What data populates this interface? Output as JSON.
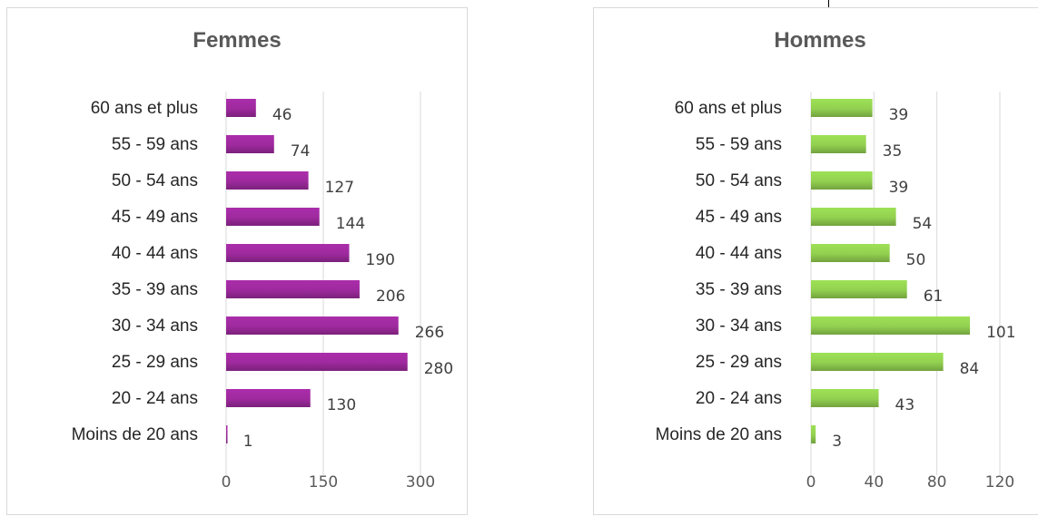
{
  "chart_data": [
    {
      "type": "bar",
      "orientation": "horizontal",
      "title": "Femmes",
      "categories": [
        "60 ans et plus",
        "55 - 59 ans",
        "50 - 54 ans",
        "45 - 49 ans",
        "40 - 44 ans",
        "35 - 39 ans",
        "30 - 34 ans",
        "25 - 29 ans",
        "20 - 24 ans",
        "Moins de 20 ans"
      ],
      "values": [
        46,
        74,
        127,
        144,
        190,
        206,
        266,
        280,
        130,
        1
      ],
      "xticks": [
        "0",
        "150",
        "300"
      ],
      "xlim": [
        0,
        300
      ],
      "color": "#9e2a9e",
      "grid": true,
      "data_labels": true
    },
    {
      "type": "bar",
      "orientation": "horizontal",
      "title": "Hommes",
      "categories": [
        "60 ans et plus",
        "55 - 59 ans",
        "50 - 54 ans",
        "45 - 49 ans",
        "40 - 44 ans",
        "35 - 39 ans",
        "30 - 34 ans",
        "25 - 29 ans",
        "20 - 24 ans",
        "Moins de 20 ans"
      ],
      "values": [
        39,
        35,
        39,
        54,
        50,
        61,
        101,
        84,
        43,
        3
      ],
      "xticks": [
        "0",
        "40",
        "80",
        "120"
      ],
      "xlim": [
        0,
        120
      ],
      "color": "#92d050",
      "grid": true,
      "data_labels": true
    }
  ]
}
